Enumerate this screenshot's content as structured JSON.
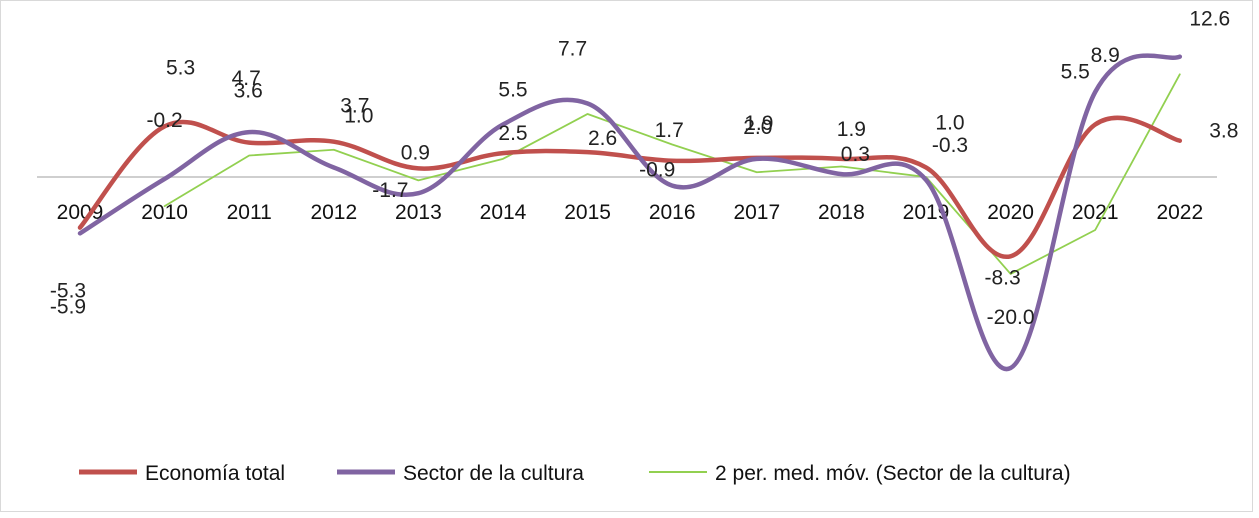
{
  "chart_data": {
    "type": "line",
    "title": "",
    "xlabel": "",
    "ylabel": "",
    "categories": [
      "2009",
      "2010",
      "2011",
      "2012",
      "2013",
      "2014",
      "2015",
      "2016",
      "2017",
      "2018",
      "2019",
      "2020",
      "2021",
      "2022"
    ],
    "ylim": [
      -22,
      14
    ],
    "grid": false,
    "legend_position": "bottom",
    "series": [
      {
        "name": "Economía total",
        "color": "#c0504d",
        "smooth": true,
        "values": [
          -5.3,
          5.3,
          3.6,
          3.7,
          0.9,
          2.5,
          2.6,
          1.7,
          2.0,
          1.9,
          1.0,
          -8.3,
          5.5,
          3.8
        ],
        "labels": [
          "-5.3",
          "5.3",
          "3.6",
          "3.7",
          "0.9",
          "2.5",
          "2.6",
          "1.7",
          "2.0",
          "1.9",
          "1.0",
          "-8.3",
          "5.5",
          "3.8"
        ]
      },
      {
        "name": "Sector de la cultura",
        "color": "#8064a2",
        "smooth": true,
        "values": [
          -5.9,
          -0.2,
          4.7,
          1.0,
          -1.7,
          5.5,
          7.7,
          -0.9,
          1.9,
          0.3,
          -0.3,
          -20.0,
          8.9,
          12.6
        ],
        "labels": [
          "-5.9",
          "-0.2",
          "4.7",
          "1.0",
          "-1.7",
          "5.5",
          "7.7",
          "-0.9",
          "1.9",
          "0.3",
          "-0.3",
          "-20.0",
          "8.9",
          "12.6"
        ]
      },
      {
        "name": "2 per. med. móv. (Sector de la cultura)",
        "color": "#92d050",
        "smooth": false,
        "values": [
          null,
          -3.05,
          2.25,
          2.85,
          -0.35,
          1.9,
          6.6,
          3.4,
          0.5,
          1.1,
          0.0,
          -10.15,
          -5.55,
          10.75
        ]
      }
    ]
  }
}
